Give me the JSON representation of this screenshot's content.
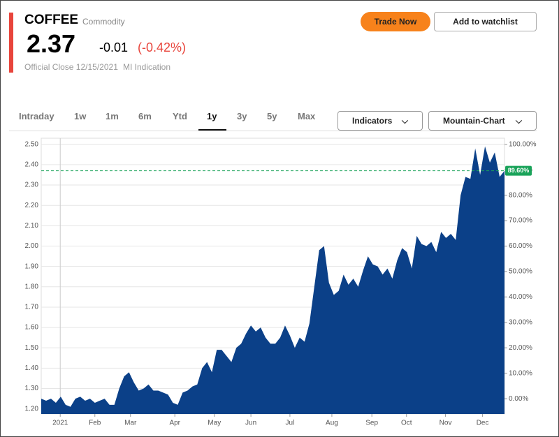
{
  "header": {
    "symbol": "COFFEE",
    "kind": "Commodity",
    "price": "2.37",
    "change": "-0.01",
    "change_pct": "(-0.42%)",
    "close_note": "Official Close 12/15/2021",
    "indication": "MI Indication"
  },
  "buttons": {
    "trade": "Trade Now",
    "watchlist": "Add to watchlist"
  },
  "tabs": {
    "items": [
      "Intraday",
      "1w",
      "1m",
      "6m",
      "Ytd",
      "1y",
      "3y",
      "5y",
      "Max"
    ],
    "active": 5
  },
  "dropdowns": [
    "Indicators",
    "Mountain-Chart"
  ],
  "chart_data": {
    "type": "area",
    "series": [
      {
        "name": "COFFEE",
        "color": "#0b4088",
        "values": [
          1.25,
          1.24,
          1.25,
          1.23,
          1.26,
          1.22,
          1.21,
          1.25,
          1.26,
          1.24,
          1.25,
          1.23,
          1.24,
          1.25,
          1.22,
          1.22,
          1.3,
          1.36,
          1.38,
          1.33,
          1.29,
          1.3,
          1.32,
          1.29,
          1.29,
          1.28,
          1.27,
          1.23,
          1.22,
          1.28,
          1.29,
          1.31,
          1.32,
          1.4,
          1.43,
          1.38,
          1.49,
          1.49,
          1.46,
          1.43,
          1.5,
          1.52,
          1.57,
          1.61,
          1.58,
          1.6,
          1.55,
          1.52,
          1.52,
          1.55,
          1.61,
          1.56,
          1.5,
          1.55,
          1.53,
          1.62,
          1.8,
          1.98,
          2.0,
          1.82,
          1.76,
          1.78,
          1.86,
          1.81,
          1.84,
          1.8,
          1.88,
          1.95,
          1.91,
          1.9,
          1.86,
          1.89,
          1.84,
          1.93,
          1.99,
          1.97,
          1.89,
          2.05,
          2.01,
          2.0,
          2.02,
          1.97,
          2.07,
          2.04,
          2.06,
          2.03,
          2.25,
          2.34,
          2.33,
          2.48,
          2.35,
          2.49,
          2.41,
          2.46,
          2.34,
          2.37
        ]
      }
    ],
    "xlim": [
      0,
      95
    ],
    "xticks": [
      {
        "value": 3.9,
        "label": "2021"
      },
      {
        "value": 11.0,
        "label": "Feb"
      },
      {
        "value": 18.3,
        "label": "Mar"
      },
      {
        "value": 27.4,
        "label": "Apr"
      },
      {
        "value": 35.5,
        "label": "May"
      },
      {
        "value": 43.0,
        "label": "Jun"
      },
      {
        "value": 51.0,
        "label": "Jul"
      },
      {
        "value": 59.6,
        "label": "Aug"
      },
      {
        "value": 67.8,
        "label": "Sep"
      },
      {
        "value": 74.9,
        "label": "Oct"
      },
      {
        "value": 82.9,
        "label": "Nov"
      },
      {
        "value": 90.5,
        "label": "Dec"
      }
    ],
    "ylim": [
      1.175,
      2.53
    ],
    "yticks": [
      {
        "value": 1.2,
        "label": "1.20"
      },
      {
        "value": 1.3,
        "label": "1.30"
      },
      {
        "value": 1.4,
        "label": "1.40"
      },
      {
        "value": 1.5,
        "label": "1.50"
      },
      {
        "value": 1.6,
        "label": "1.60"
      },
      {
        "value": 1.7,
        "label": "1.70"
      },
      {
        "value": 1.8,
        "label": "1.80"
      },
      {
        "value": 1.9,
        "label": "1.90"
      },
      {
        "value": 2.0,
        "label": "2.00"
      },
      {
        "value": 2.1,
        "label": "2.10"
      },
      {
        "value": 2.2,
        "label": "2.20"
      },
      {
        "value": 2.3,
        "label": "2.30"
      },
      {
        "value": 2.4,
        "label": "2.40"
      },
      {
        "value": 2.5,
        "label": "2.50"
      }
    ],
    "y2lim": [
      -6,
      102.4
    ],
    "y2ticks": [
      {
        "value": 0,
        "label": "0.00%"
      },
      {
        "value": 10,
        "label": "10.00%"
      },
      {
        "value": 20,
        "label": "20.00%"
      },
      {
        "value": 30,
        "label": "30.00%"
      },
      {
        "value": 40,
        "label": "40.00%"
      },
      {
        "value": 50,
        "label": "50.00%"
      },
      {
        "value": 60,
        "label": "60.00%"
      },
      {
        "value": 70,
        "label": "70.00%"
      },
      {
        "value": 80,
        "label": "80.00%"
      },
      {
        "value": 90,
        "label": "90.00%"
      },
      {
        "value": 100,
        "label": "100.00%"
      }
    ],
    "last_marker": {
      "value": 89.6,
      "label": "89.60%",
      "color": "#1aa35a"
    },
    "grid": true
  }
}
